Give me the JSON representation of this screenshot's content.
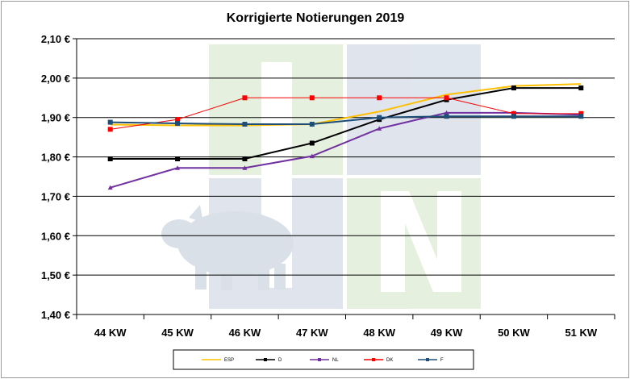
{
  "chart_data": {
    "type": "line",
    "title": "Korrigierte Notierungen 2019",
    "xlabel": "",
    "ylabel": "",
    "categories": [
      "44 KW",
      "45 KW",
      "46 KW",
      "47 KW",
      "48 KW",
      "49 KW",
      "50 KW",
      "51 KW"
    ],
    "ylim": [
      1.4,
      2.1
    ],
    "yticks": [
      "1,40 €",
      "1,50 €",
      "1,60 €",
      "1,70 €",
      "1,80 €",
      "1,90 €",
      "2,00 €",
      "2,10 €"
    ],
    "grid": true,
    "legend_position": "bottom",
    "series": [
      {
        "name": "ESP",
        "color": "#FFC000",
        "values": [
          1.882,
          1.88,
          1.88,
          1.883,
          1.915,
          1.958,
          1.98,
          1.985
        ]
      },
      {
        "name": "D",
        "color": "#000000",
        "values": [
          1.795,
          1.795,
          1.795,
          1.835,
          1.895,
          1.945,
          1.975,
          1.975
        ]
      },
      {
        "name": "NL",
        "color": "#7030A0",
        "values": [
          1.722,
          1.772,
          1.772,
          1.802,
          1.872,
          1.912,
          1.912,
          1.907
        ]
      },
      {
        "name": "DK",
        "color": "#FF0000",
        "values": [
          1.87,
          1.895,
          1.95,
          1.95,
          1.95,
          1.95,
          1.91,
          1.91
        ]
      },
      {
        "name": "F",
        "color": "#1F4E79",
        "values": [
          1.888,
          1.885,
          1.883,
          1.883,
          1.9,
          1.903,
          1.903,
          1.903
        ]
      }
    ]
  }
}
